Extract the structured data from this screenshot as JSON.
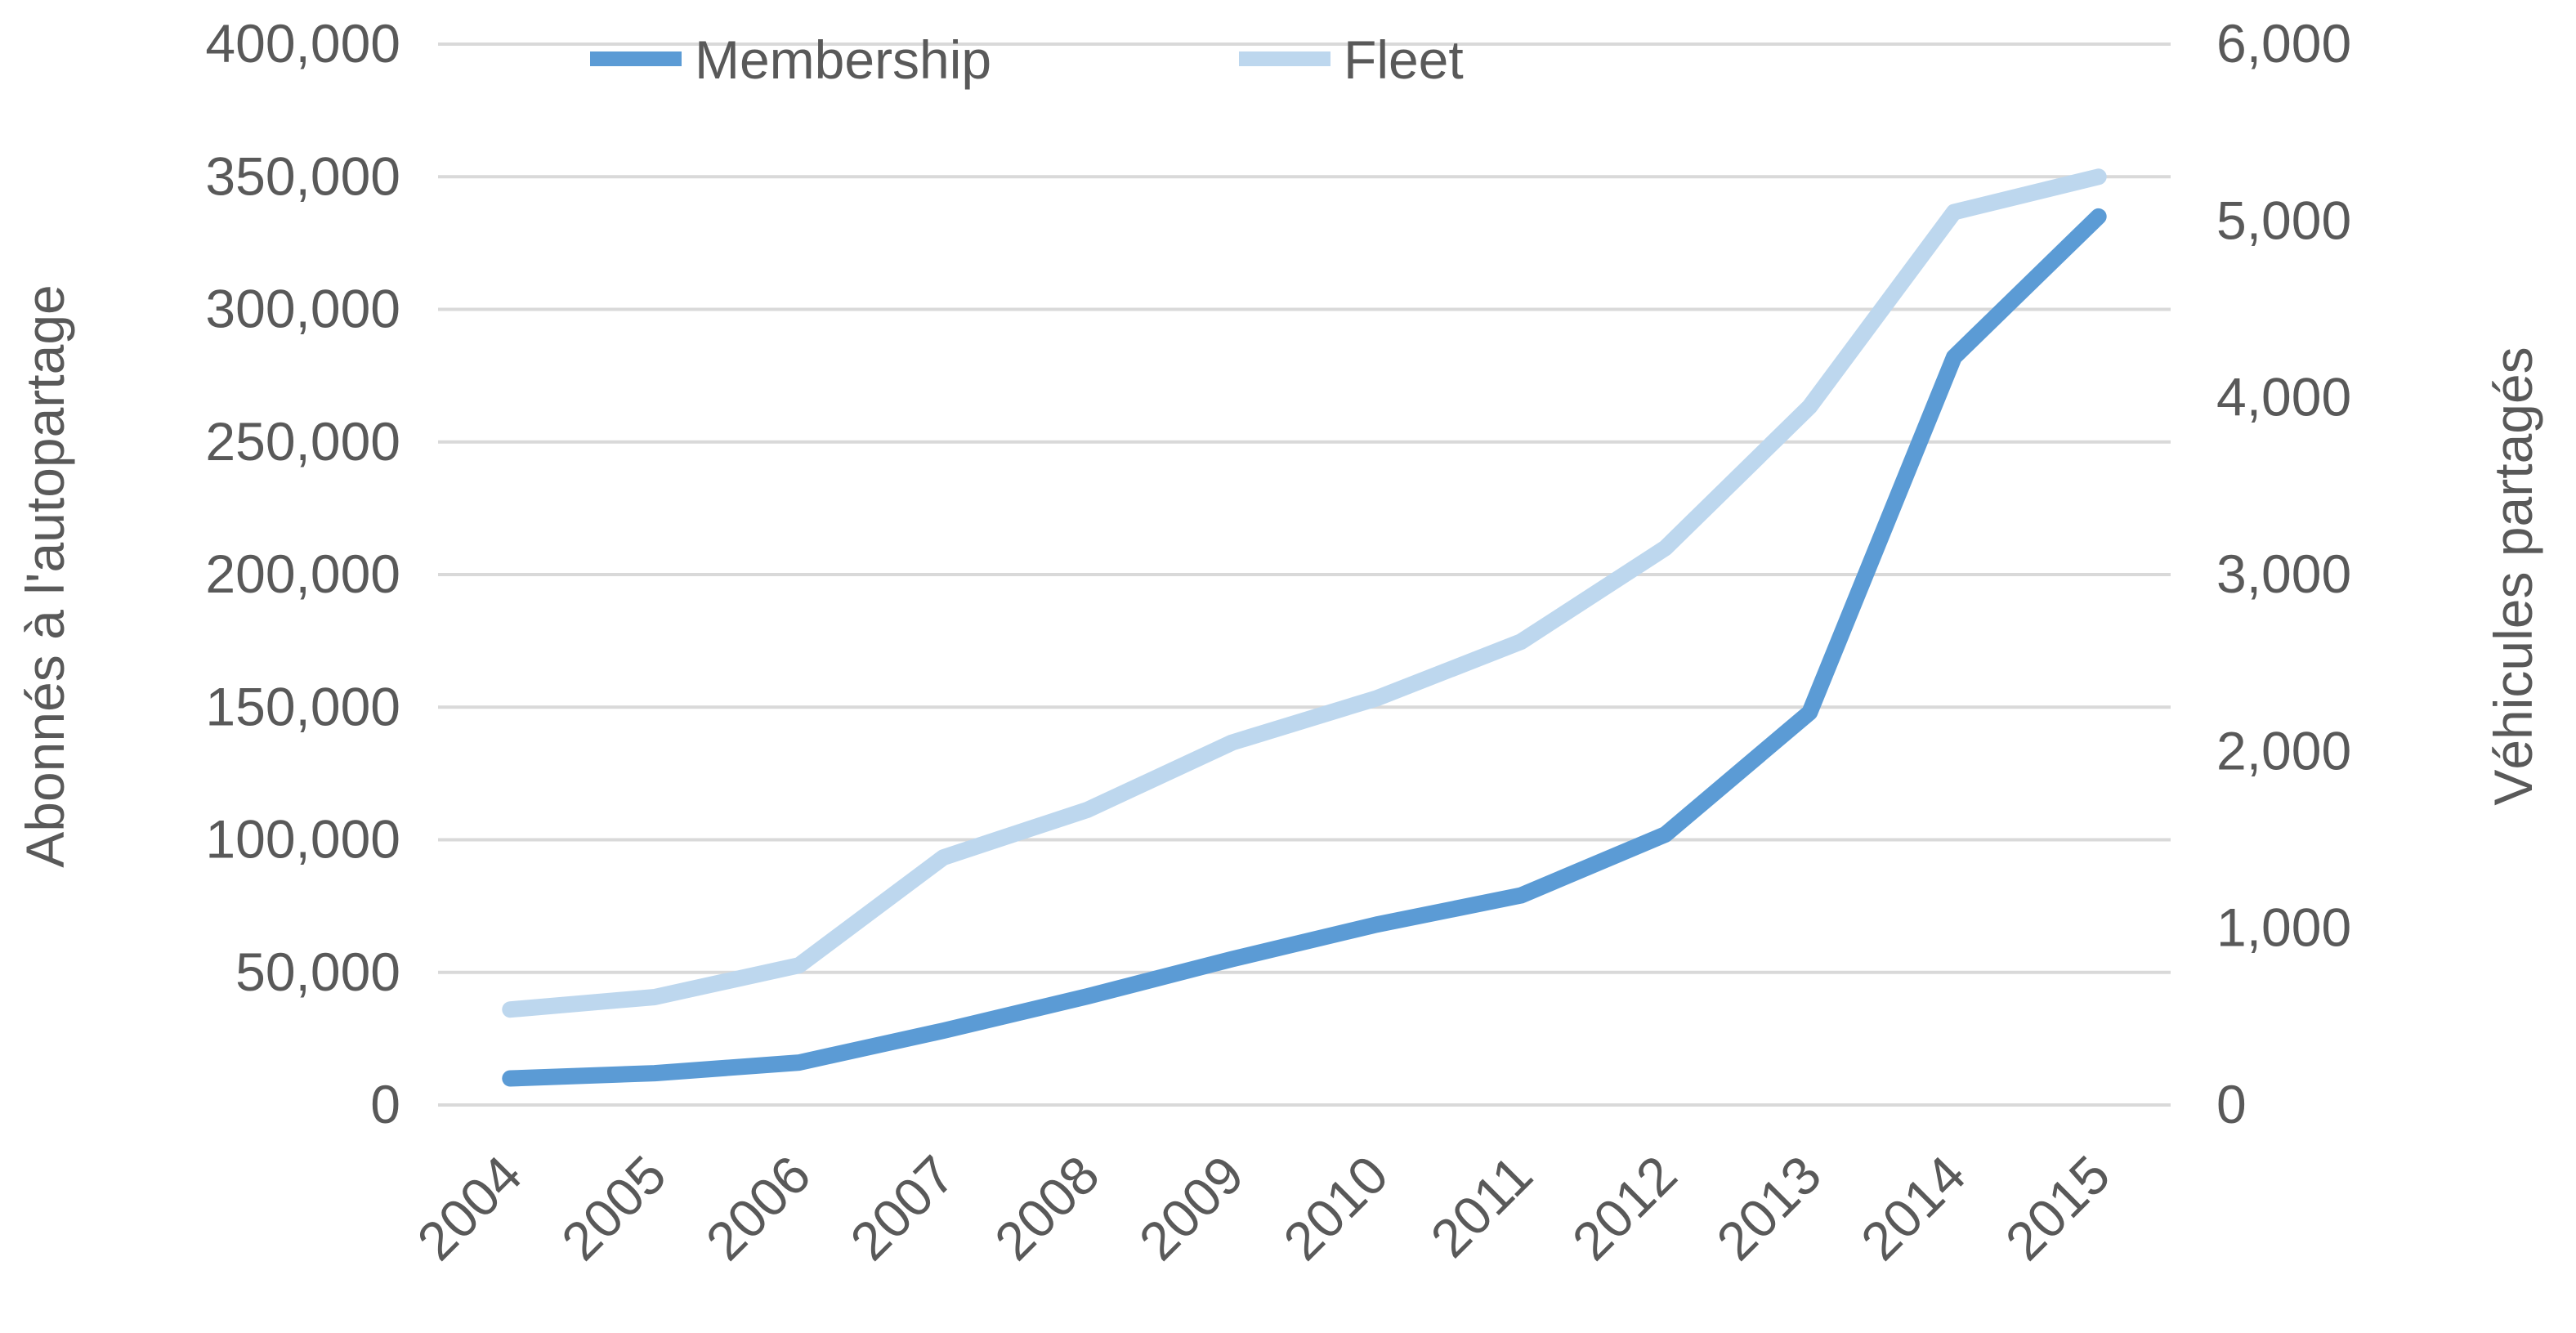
{
  "chart_data": {
    "type": "line",
    "categories": [
      "2004",
      "2005",
      "2006",
      "2007",
      "2008",
      "2009",
      "2010",
      "2011",
      "2012",
      "2013",
      "2014",
      "2015"
    ],
    "series": [
      {
        "name": "Membership",
        "axis": "left",
        "color": "#5b9bd5",
        "values": [
          10000,
          12000,
          16000,
          28000,
          41000,
          55000,
          68000,
          79000,
          102000,
          148000,
          282000,
          335000
        ]
      },
      {
        "name": "Fleet",
        "axis": "right",
        "color": "#bdd7ee",
        "values": [
          540,
          610,
          790,
          1400,
          1670,
          2050,
          2300,
          2620,
          3150,
          3950,
          5050,
          5250
        ]
      }
    ],
    "ylabel": "Abonnés à l'autopartage",
    "y2label": "Véhicules partagés",
    "ylim": [
      0,
      400000
    ],
    "y2lim": [
      0,
      6000
    ],
    "yticks": [
      "0",
      "50,000",
      "100,000",
      "150,000",
      "200,000",
      "250,000",
      "300,000",
      "350,000",
      "400,000"
    ],
    "y2ticks": [
      "0",
      "1,000",
      "2,000",
      "3,000",
      "4,000",
      "5,000",
      "6,000"
    ],
    "grid": true,
    "legend": "top-center"
  }
}
